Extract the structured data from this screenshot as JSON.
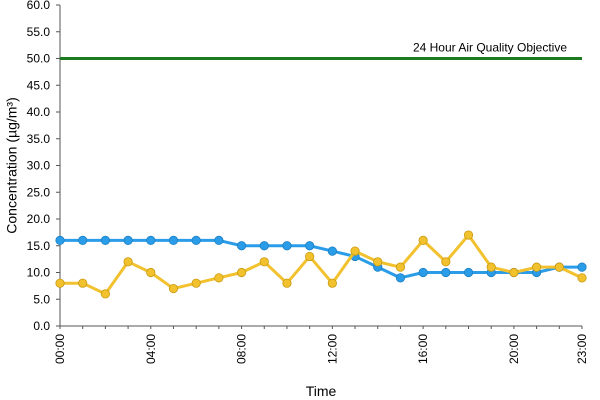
{
  "chart_data": {
    "type": "line",
    "xlabel": "Time",
    "ylabel": "Concentration (µg/m³)",
    "ylim": [
      0,
      60
    ],
    "y_ticks": [
      "0.0",
      "5.0",
      "10.0",
      "15.0",
      "20.0",
      "25.0",
      "30.0",
      "35.0",
      "40.0",
      "45.0",
      "50.0",
      "55.0",
      "60.0"
    ],
    "x_hours": [
      0,
      1,
      2,
      3,
      4,
      5,
      6,
      7,
      8,
      9,
      10,
      11,
      12,
      13,
      14,
      15,
      16,
      17,
      18,
      19,
      20,
      21,
      22,
      23
    ],
    "x_tick_labels": [
      {
        "hour": 0,
        "label": "00:00"
      },
      {
        "hour": 4,
        "label": "04:00"
      },
      {
        "hour": 8,
        "label": "08:00"
      },
      {
        "hour": 12,
        "label": "12:00"
      },
      {
        "hour": 16,
        "label": "16:00"
      },
      {
        "hour": 20,
        "label": "20:00"
      },
      {
        "hour": 23,
        "label": "23:00"
      }
    ],
    "grid": false,
    "series": [
      {
        "color": "#2b9de8",
        "values": [
          16,
          16,
          16,
          16,
          16,
          16,
          16,
          16,
          15,
          15,
          15,
          15,
          14,
          13,
          11,
          9,
          10,
          10,
          10,
          10,
          10,
          10,
          11,
          11
        ]
      },
      {
        "color": "#f2c12e",
        "values": [
          8,
          8,
          6,
          12,
          10,
          7,
          8,
          9,
          10,
          12,
          8,
          13,
          8,
          14,
          12,
          11,
          16,
          12,
          17,
          11,
          10,
          11,
          11,
          9
        ]
      }
    ],
    "objective": {
      "label": "24 Hour Air Quality Objective",
      "value": 50,
      "color": "#1e7a1e"
    }
  }
}
